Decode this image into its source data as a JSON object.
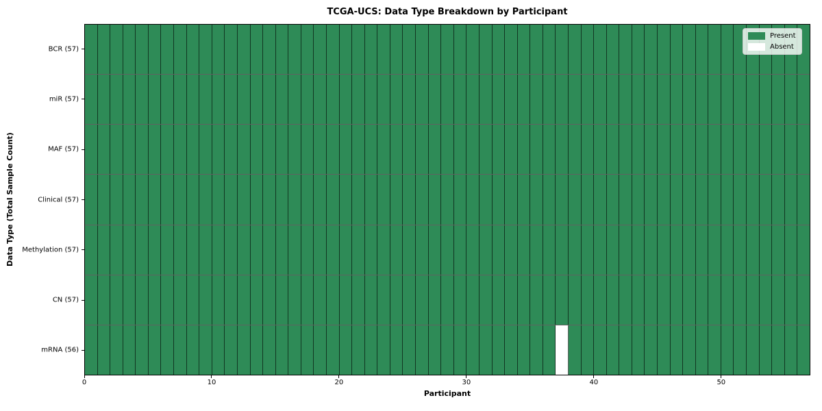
{
  "chart_data": {
    "type": "heatmap",
    "title": "TCGA-UCS: Data Type Breakdown by Participant",
    "xlabel": "Participant",
    "ylabel": "Data Type (Total Sample Count)",
    "x_range": [
      0,
      57
    ],
    "x_ticks": [
      0,
      10,
      20,
      30,
      40,
      50
    ],
    "n_participants": 57,
    "grid": true,
    "colors": {
      "present": "#2E8B57",
      "absent": "#ffffff"
    },
    "rows": [
      {
        "name": "BCR",
        "label": "BCR (57)",
        "count": 57,
        "absent_participants": []
      },
      {
        "name": "miR",
        "label": "miR (57)",
        "count": 57,
        "absent_participants": []
      },
      {
        "name": "MAF",
        "label": "MAF (57)",
        "count": 57,
        "absent_participants": []
      },
      {
        "name": "Clinical",
        "label": "Clinical (57)",
        "count": 57,
        "absent_participants": []
      },
      {
        "name": "Methylation",
        "label": "Methylation (57)",
        "count": 57,
        "absent_participants": []
      },
      {
        "name": "CN",
        "label": "CN (57)",
        "count": 57,
        "absent_participants": []
      },
      {
        "name": "mRNA",
        "label": "mRNA (56)",
        "count": 56,
        "absent_participants": [
          37
        ]
      }
    ],
    "legend": {
      "position": "upper right",
      "entries": [
        {
          "label": "Present",
          "color": "#2E8B57"
        },
        {
          "label": "Absent",
          "color": "#ffffff"
        }
      ]
    }
  }
}
